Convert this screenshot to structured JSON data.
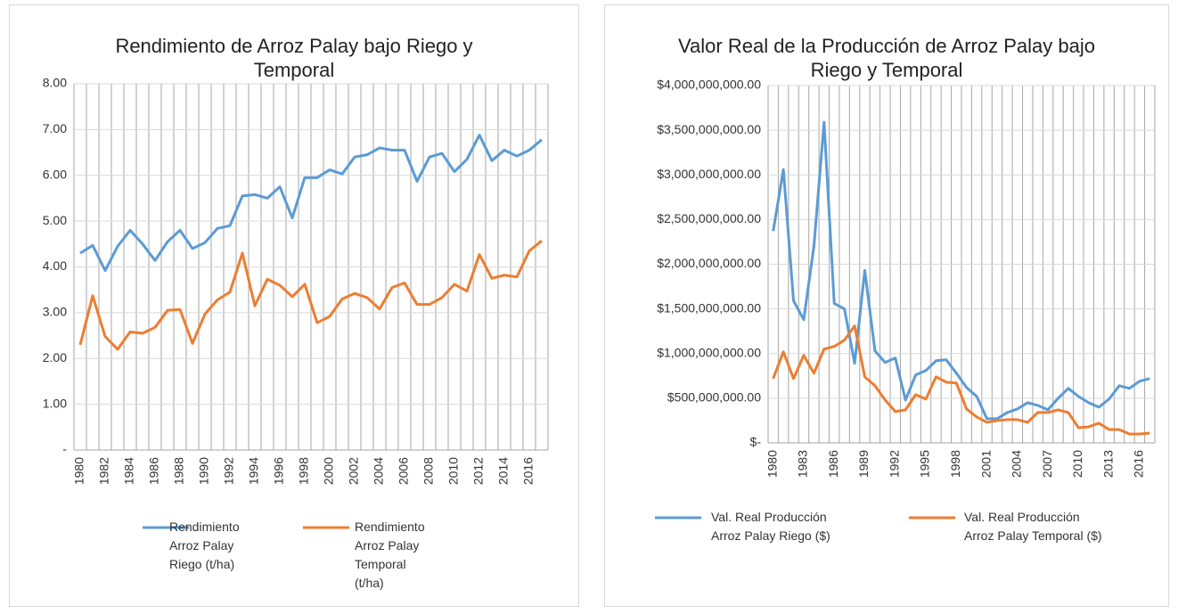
{
  "chart_data": [
    {
      "type": "line",
      "title": "Rendimiento de Arroz Palay bajo Riego y Temporal",
      "categories": [
        "1980",
        null,
        "1982",
        null,
        "1984",
        null,
        "1986",
        null,
        "1988",
        null,
        "1990",
        null,
        "1992",
        null,
        "1994",
        null,
        "1996",
        null,
        "1998",
        null,
        "2000",
        null,
        "2002",
        null,
        "2004",
        null,
        "2006",
        null,
        "2008",
        null,
        "2010",
        null,
        "2012",
        null,
        "2014",
        null,
        "2016",
        null
      ],
      "series": [
        {
          "name": "Rendimiento Arroz Palay Riego (t/ha)",
          "color": "#5b9bd5",
          "values": [
            4.3,
            4.47,
            3.92,
            4.45,
            4.8,
            4.5,
            4.14,
            4.55,
            4.8,
            4.4,
            4.53,
            4.84,
            4.9,
            5.55,
            5.58,
            5.5,
            5.75,
            5.07,
            5.95,
            5.95,
            6.12,
            6.03,
            6.4,
            6.45,
            6.6,
            6.55,
            6.55,
            5.87,
            6.4,
            6.48,
            6.08,
            6.35,
            6.88,
            6.32,
            6.55,
            6.42,
            6.55,
            6.78
          ]
        },
        {
          "name": "Rendimiento Arroz Palay Temporal (t/ha)",
          "color": "#ed7d31",
          "values": [
            2.3,
            3.37,
            2.48,
            2.2,
            2.58,
            2.55,
            2.68,
            3.05,
            3.07,
            2.33,
            2.97,
            3.28,
            3.45,
            4.3,
            3.15,
            3.73,
            3.6,
            3.35,
            3.62,
            2.78,
            2.92,
            3.3,
            3.42,
            3.33,
            3.08,
            3.55,
            3.65,
            3.18,
            3.18,
            3.33,
            3.62,
            3.47,
            4.27,
            3.75,
            3.82,
            3.78,
            4.35,
            4.57
          ]
        }
      ],
      "ylim": [
        0,
        8
      ],
      "yticks": [
        {
          "value": 0,
          "label": "-"
        },
        {
          "value": 1,
          "label": "1.00"
        },
        {
          "value": 2,
          "label": "2.00"
        },
        {
          "value": 3,
          "label": "3.00"
        },
        {
          "value": 4,
          "label": "4.00"
        },
        {
          "value": 5,
          "label": "5.00"
        },
        {
          "value": 6,
          "label": "6.00"
        },
        {
          "value": 7,
          "label": "7.00"
        },
        {
          "value": 8,
          "label": "8.00"
        }
      ],
      "grid": true,
      "legend": "bottom"
    },
    {
      "type": "line",
      "title": "Valor Real de la Producción de Arroz Palay bajo Riego y Temporal",
      "categories": [
        "1980",
        null,
        null,
        "1983",
        null,
        null,
        "1986",
        null,
        null,
        "1989",
        null,
        null,
        "1992",
        null,
        null,
        "1995",
        null,
        null,
        "1998",
        null,
        null,
        "2001",
        null,
        null,
        "2004",
        null,
        null,
        "2007",
        null,
        null,
        "2010",
        null,
        null,
        "2013",
        null,
        null,
        "2016",
        null
      ],
      "series": [
        {
          "name": "Val. Real Producción Arroz Palay Riego ($)",
          "color": "#5b9bd5",
          "values": [
            2370000000,
            3060000000,
            1590000000,
            1380000000,
            2200000000,
            3590000000,
            1560000000,
            1500000000,
            890000000,
            1930000000,
            1030000000,
            900000000,
            950000000,
            480000000,
            760000000,
            810000000,
            920000000,
            930000000,
            780000000,
            620000000,
            520000000,
            270000000,
            270000000,
            340000000,
            380000000,
            450000000,
            420000000,
            370000000,
            500000000,
            610000000,
            520000000,
            450000000,
            400000000,
            490000000,
            640000000,
            610000000,
            690000000,
            720000000
          ]
        },
        {
          "name": "Val. Real Producción Arroz Palay Temporal ($)",
          "color": "#ed7d31",
          "values": [
            720000000,
            1020000000,
            720000000,
            980000000,
            780000000,
            1050000000,
            1080000000,
            1150000000,
            1310000000,
            740000000,
            640000000,
            480000000,
            350000000,
            370000000,
            540000000,
            490000000,
            740000000,
            680000000,
            670000000,
            380000000,
            290000000,
            230000000,
            250000000,
            260000000,
            260000000,
            230000000,
            340000000,
            340000000,
            370000000,
            340000000,
            170000000,
            180000000,
            220000000,
            150000000,
            150000000,
            100000000,
            100000000,
            110000000
          ]
        }
      ],
      "ylim": [
        0,
        4000000000
      ],
      "yticks": [
        {
          "value": 0,
          "label": "$-"
        },
        {
          "value": 500000000,
          "label": "$500,000,000.00"
        },
        {
          "value": 1000000000,
          "label": "$1,000,000,000.00"
        },
        {
          "value": 1500000000,
          "label": "$1,500,000,000.00"
        },
        {
          "value": 2000000000,
          "label": "$2,000,000,000.00"
        },
        {
          "value": 2500000000,
          "label": "$2,500,000,000.00"
        },
        {
          "value": 3000000000,
          "label": "$3,000,000,000.00"
        },
        {
          "value": 3500000000,
          "label": "$3,500,000,000.00"
        },
        {
          "value": 4000000000,
          "label": "$4,000,000,000.00"
        }
      ],
      "grid": true,
      "legend": "bottom"
    }
  ]
}
